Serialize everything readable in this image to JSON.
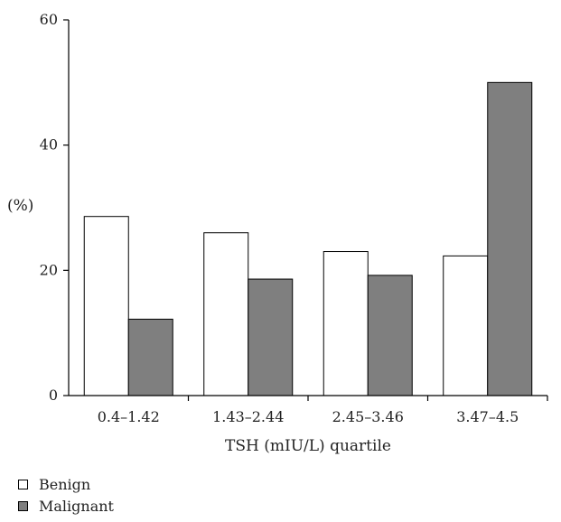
{
  "chart_data": {
    "type": "bar",
    "title": "",
    "xlabel": "TSH (mIU/L) quartile",
    "ylabel": "(%)",
    "categories": [
      "0.4–1.42",
      "1.43–2.44",
      "2.45–3.46",
      "3.47–4.5"
    ],
    "series": [
      {
        "name": "Benign",
        "values": [
          28.6,
          26.0,
          23.0,
          22.3
        ],
        "color": "#ffffff"
      },
      {
        "name": "Malignant",
        "values": [
          12.2,
          18.6,
          19.2,
          50.0
        ],
        "color": "#7f7f7f"
      }
    ],
    "ylim": [
      0,
      60
    ],
    "yticks": [
      "0",
      "20",
      "40",
      "60"
    ],
    "grid": false,
    "legend_position": "bottom-left"
  }
}
